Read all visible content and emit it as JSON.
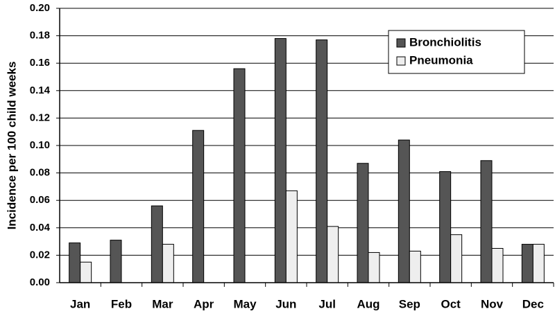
{
  "chart_data": {
    "type": "bar",
    "y_label": "Incidence per 100 child weeks",
    "categories": [
      "Jan",
      "Feb",
      "Mar",
      "Apr",
      "May",
      "Jun",
      "Jul",
      "Aug",
      "Sep",
      "Oct",
      "Nov",
      "Dec"
    ],
    "series": [
      {
        "name": "Bronchiolitis",
        "color": "#555555",
        "values": [
          0.029,
          0.031,
          0.056,
          0.111,
          0.156,
          0.178,
          0.177,
          0.087,
          0.104,
          0.081,
          0.089,
          0.028
        ]
      },
      {
        "name": "Pneumonia",
        "color": "#eeeeee",
        "values": [
          0.015,
          0,
          0.028,
          0,
          0,
          0.067,
          0.041,
          0.022,
          0.023,
          0.035,
          0.025,
          0.028
        ]
      }
    ],
    "ylim": [
      0,
      0.2
    ],
    "yticks": [
      {
        "value": 0,
        "label": "0.00"
      },
      {
        "value": 0.02,
        "label": "0.02"
      },
      {
        "value": 0.04,
        "label": "0.04"
      },
      {
        "value": 0.06,
        "label": "0.06"
      },
      {
        "value": 0.08,
        "label": "0.08"
      },
      {
        "value": 0.1,
        "label": "0.10"
      },
      {
        "value": 0.12,
        "label": "0.12"
      },
      {
        "value": 0.14,
        "label": "0.14"
      },
      {
        "value": 0.16,
        "label": "0.16"
      },
      {
        "value": 0.18,
        "label": "0.18"
      },
      {
        "value": 0.2,
        "label": "0.20"
      }
    ],
    "grid": true,
    "legend": "upper right"
  }
}
